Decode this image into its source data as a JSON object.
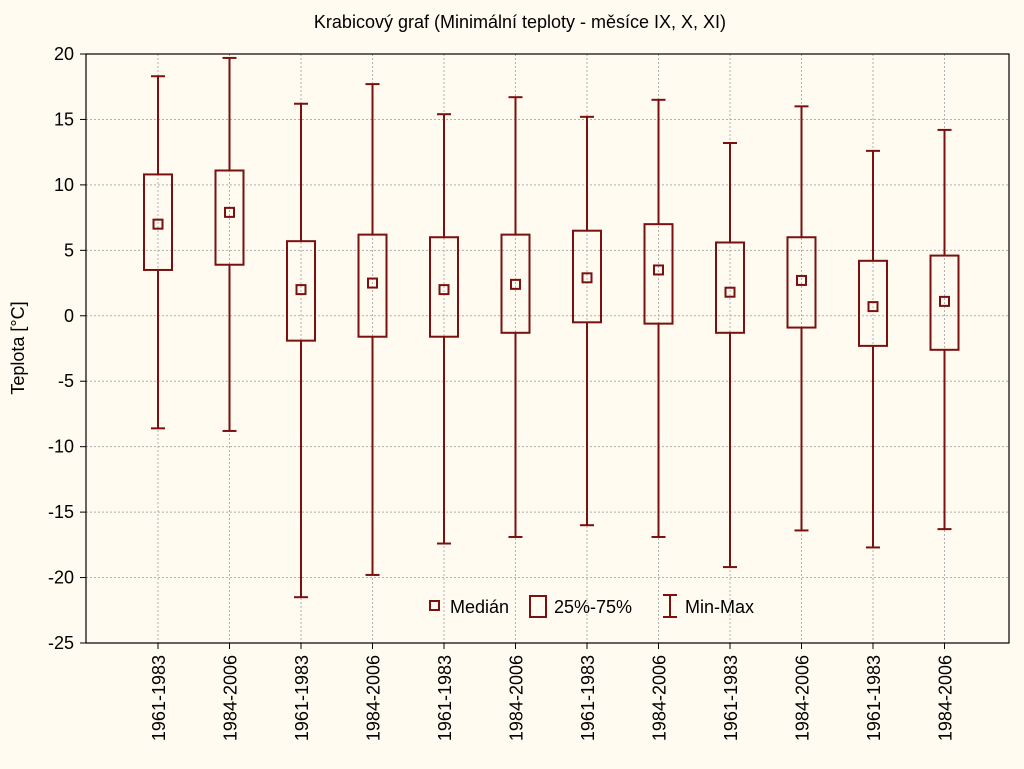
{
  "chart_data": {
    "type": "box",
    "title": "Krabicový graf (Minimální teploty - měsíce IX, X, XI)",
    "ylabel": "Teplota [°C]",
    "xlabel": "",
    "ylim": [
      -25,
      20
    ],
    "yticks": [
      20,
      15,
      10,
      5,
      0,
      -5,
      -10,
      -15,
      -20,
      -25
    ],
    "grid": true,
    "legend_position": "bottom-center",
    "colors": {
      "box": "#7a1010",
      "grid": "#b0b0b0",
      "background": "#fffbf0"
    },
    "categories": [
      "1961-1983",
      "1984-2006",
      "1961-1983",
      "1984-2006",
      "1961-1983",
      "1984-2006",
      "1961-1983",
      "1984-2006",
      "1961-1983",
      "1984-2006",
      "1961-1983",
      "1984-2006"
    ],
    "series": [
      {
        "name": "Medián",
        "values": [
          7.0,
          7.9,
          2.0,
          2.5,
          2.0,
          2.4,
          2.9,
          3.5,
          1.8,
          2.7,
          0.7,
          1.1
        ]
      },
      {
        "name": "25%",
        "values": [
          3.5,
          3.9,
          -1.9,
          -1.6,
          -1.6,
          -1.3,
          -0.5,
          -0.6,
          -1.3,
          -0.9,
          -2.3,
          -2.6
        ]
      },
      {
        "name": "75%",
        "values": [
          10.8,
          11.1,
          5.7,
          6.2,
          6.0,
          6.2,
          6.5,
          7.0,
          5.6,
          6.0,
          4.2,
          4.6
        ]
      },
      {
        "name": "Min",
        "values": [
          -8.6,
          -8.8,
          -21.5,
          -19.8,
          -17.4,
          -16.9,
          -16.0,
          -16.9,
          -19.2,
          -16.4,
          -17.7,
          -16.3
        ]
      },
      {
        "name": "Max",
        "values": [
          18.3,
          19.7,
          16.2,
          17.7,
          15.4,
          16.7,
          15.2,
          16.5,
          13.2,
          16.0,
          12.6,
          14.2
        ]
      }
    ],
    "legend": {
      "median_label": "Medián",
      "box_label": "25%-75%",
      "range_label": "Min-Max"
    }
  }
}
